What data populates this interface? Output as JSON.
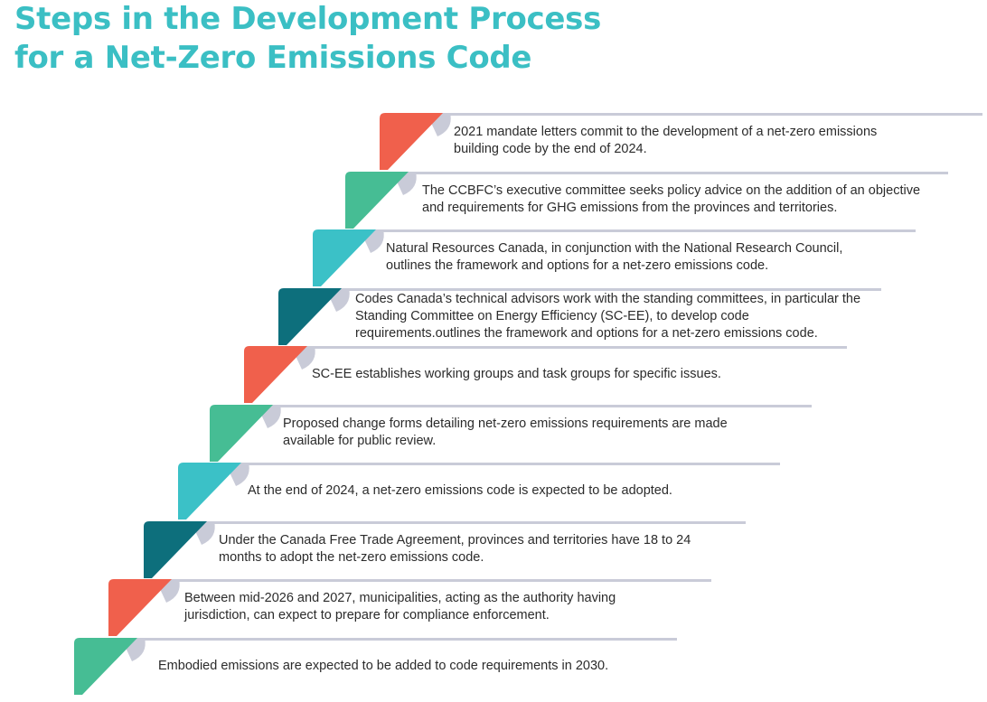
{
  "title": {
    "line1": "Steps in the Development Process",
    "line2": "for a Net-Zero Emissions Code"
  },
  "colors": {
    "title": "#3bbfc4",
    "coral": "#f0604c",
    "green": "#46bd94",
    "teal": "#3bc1c7",
    "dark_teal": "#0d6f7c",
    "rule": "#c9cbd8"
  },
  "steps": [
    {
      "color": "coral",
      "text": "2021 mandate letters commit to the development of a net-zero emissions building code by the end of 2024."
    },
    {
      "color": "green",
      "text": "The CCBFC’s executive committee seeks policy advice on the addition of an objective and requirements for GHG emissions from the provinces and territories."
    },
    {
      "color": "teal",
      "text": "Natural Resources Canada, in conjunction with the National Research Council, outlines the framework and options for a net-zero emissions code."
    },
    {
      "color": "dark_teal",
      "text": "Codes Canada’s technical advisors work with the standing committees, in particular the Standing Committee on Energy Efficiency (SC-EE), to develop code requirements.outlines the framework and options for a net-zero emissions code."
    },
    {
      "color": "coral",
      "text": "SC-EE establishes working groups and task groups for specific issues."
    },
    {
      "color": "green",
      "text": "Proposed change forms detailing net-zero emissions requirements are made available for public review."
    },
    {
      "color": "teal",
      "text": "At the end of 2024, a net-zero emissions code is expected to be adopted."
    },
    {
      "color": "dark_teal",
      "text": "Under the Canada Free Trade Agreement, provinces and territories have 18 to 24 months to adopt the net-zero emissions code."
    },
    {
      "color": "coral",
      "text": "Between mid-2026 and 2027, municipalities, acting as the authority having jurisdiction, can expect to prepare for compliance enforcement."
    },
    {
      "color": "green",
      "text": "Embodied emissions are expected to be added to code requirements in 2030."
    }
  ]
}
